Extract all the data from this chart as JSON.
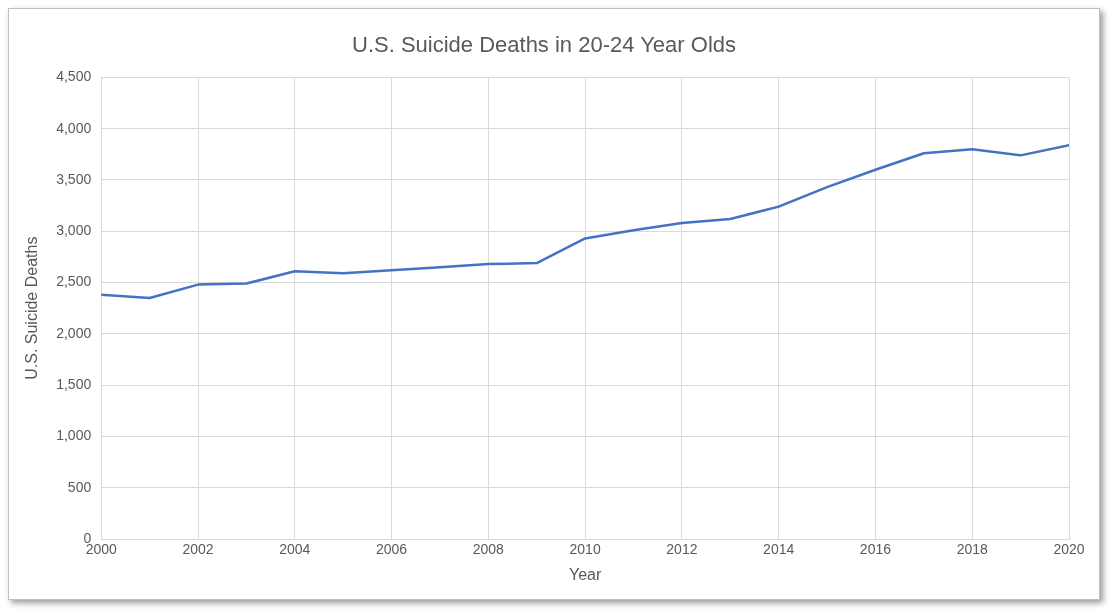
{
  "chart_data": {
    "type": "line",
    "title": "U.S. Suicide Deaths in 20-24 Year Olds",
    "xlabel": "Year",
    "ylabel": "U.S. Suicide Deaths",
    "x": [
      2000,
      2001,
      2002,
      2003,
      2004,
      2005,
      2006,
      2007,
      2008,
      2009,
      2010,
      2011,
      2012,
      2013,
      2014,
      2015,
      2016,
      2017,
      2018,
      2019,
      2020
    ],
    "series": [
      {
        "color": "#4472c4",
        "values": [
          2380,
          2350,
          2480,
          2490,
          2610,
          2590,
          2620,
          2650,
          2680,
          2690,
          2930,
          3010,
          3080,
          3120,
          3240,
          3430,
          3600,
          3760,
          3800,
          3740,
          3840
        ]
      }
    ],
    "xlim": [
      2000,
      2020
    ],
    "xticks": [
      2000,
      2002,
      2004,
      2006,
      2008,
      2010,
      2012,
      2014,
      2016,
      2018,
      2020
    ],
    "ylim": [
      0,
      4500
    ],
    "yticks": [
      0,
      500,
      {
        "value": 1000,
        "label": "1,000"
      },
      {
        "value": 1500,
        "label": "1,500"
      },
      {
        "value": 2000,
        "label": "2,000"
      },
      {
        "value": 2500,
        "label": "2,500"
      },
      {
        "value": 3000,
        "label": "3,000"
      },
      {
        "value": 3500,
        "label": "3,500"
      },
      {
        "value": 4000,
        "label": "4,000"
      },
      {
        "value": 4500,
        "label": "4,500"
      }
    ],
    "grid": true,
    "legend": false,
    "marker": "none",
    "line_style": "solid"
  }
}
